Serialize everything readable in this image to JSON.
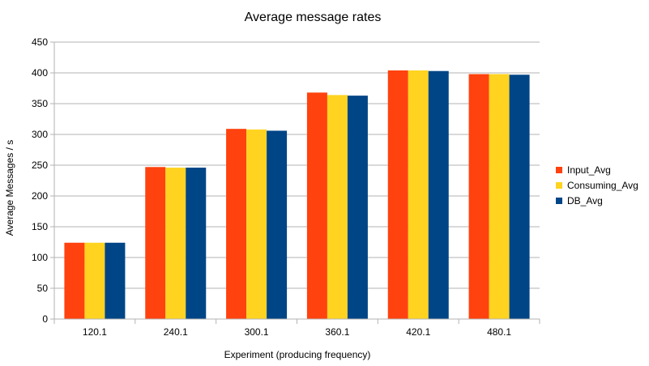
{
  "chart_data": {
    "type": "bar",
    "title": "Average message rates",
    "xlabel": "Experiment (producing frequency)",
    "ylabel": "Average Messages / s",
    "ylim": [
      0,
      450
    ],
    "yticks": [
      0,
      50,
      100,
      150,
      200,
      250,
      300,
      350,
      400,
      450
    ],
    "grid": true,
    "legend_position": "right",
    "categories": [
      "120.1",
      "240.1",
      "300.1",
      "360.1",
      "420.1",
      "480.1"
    ],
    "series": [
      {
        "name": "Input_Avg",
        "color": "#ff420e",
        "values": [
          124,
          247,
          309,
          368,
          404,
          398
        ]
      },
      {
        "name": "Consuming_Avg",
        "color": "#ffd320",
        "values": [
          124,
          246,
          308,
          364,
          404,
          398
        ]
      },
      {
        "name": "DB_Avg",
        "color": "#004586",
        "values": [
          124,
          246,
          306,
          363,
          403,
          397
        ]
      }
    ]
  }
}
